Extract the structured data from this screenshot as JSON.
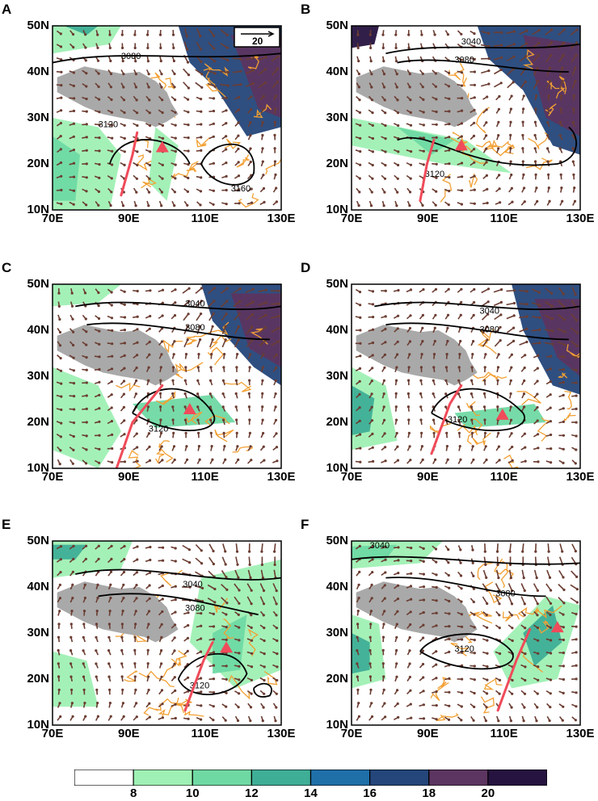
{
  "panels": [
    {
      "id": "A",
      "contours": [
        "3080",
        "3120",
        "3160"
      ],
      "has_ref_vector": true
    },
    {
      "id": "B",
      "contours": [
        "3040",
        "3080",
        "3120"
      ],
      "has_ref_vector": false
    },
    {
      "id": "C",
      "contours": [
        "3040",
        "3080",
        "3120"
      ],
      "has_ref_vector": false
    },
    {
      "id": "D",
      "contours": [
        "3040",
        "3080",
        "3120"
      ],
      "has_ref_vector": false
    },
    {
      "id": "E",
      "contours": [
        "3040",
        "3080",
        "3120"
      ],
      "has_ref_vector": false
    },
    {
      "id": "F",
      "contours": [
        "3040",
        "3080",
        "3120"
      ],
      "has_ref_vector": false
    }
  ],
  "axes": {
    "lat_ticks": [
      "50N",
      "40N",
      "30N",
      "20N",
      "10N"
    ],
    "lon_ticks": [
      "70E",
      "90E",
      "110E",
      "130E"
    ]
  },
  "reference_vector": {
    "label": "20"
  },
  "colorbar": {
    "tick_labels": [
      "8",
      "10",
      "12",
      "14",
      "16",
      "18",
      "20"
    ],
    "colors": [
      "#ffffff",
      "#9ff0b4",
      "#6fd9a3",
      "#3fae96",
      "#1f6fa8",
      "#24467a",
      "#5c3560",
      "#26133f"
    ]
  },
  "colors": {
    "land_mask": "#a9a9a9",
    "contour": "#000000",
    "vectors": "#6b3d32",
    "orange_contour": "#f2a033",
    "track": "#f04b5a",
    "marker": "#f04b5a"
  }
}
